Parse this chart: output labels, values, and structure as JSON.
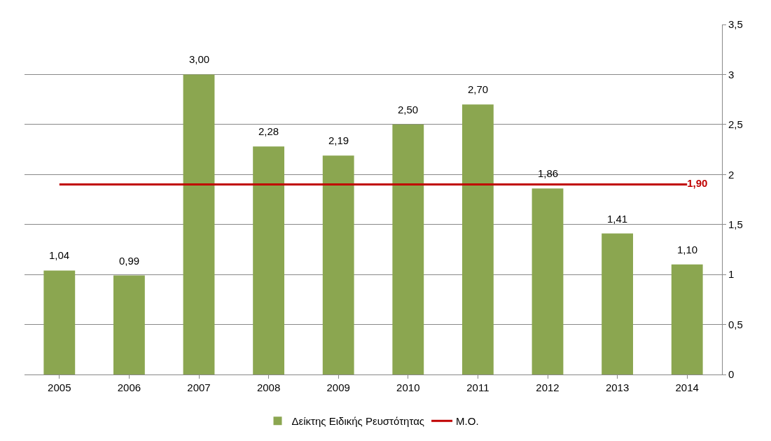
{
  "chart_data": {
    "type": "bar",
    "categories": [
      "2005",
      "2006",
      "2007",
      "2008",
      "2009",
      "2010",
      "2011",
      "2012",
      "2013",
      "2014"
    ],
    "series": [
      {
        "name": "Δείκτης Ειδικής Ρευστότητας",
        "color": "#8ba650",
        "values": [
          1.04,
          0.99,
          3.0,
          2.28,
          2.19,
          2.5,
          2.7,
          1.86,
          1.41,
          1.1
        ],
        "value_labels": [
          "1,04",
          "0,99",
          "3,00",
          "2,28",
          "2,19",
          "2,50",
          "2,70",
          "1,86",
          "1,41",
          "1,10"
        ]
      },
      {
        "name": "Μ.Ο.",
        "type": "line",
        "color": "#c00000",
        "values": [
          1.9,
          1.9,
          1.9,
          1.9,
          1.9,
          1.9,
          1.9,
          1.9,
          1.9,
          1.9
        ],
        "value_labels": [
          null,
          null,
          null,
          null,
          null,
          null,
          null,
          null,
          null,
          "1,90"
        ]
      }
    ],
    "ylim": [
      0,
      3.5
    ],
    "yticks": [
      0,
      {
        "value": 0.5,
        "label": "0,5"
      },
      1,
      {
        "value": 1.5,
        "label": "1,5"
      },
      2,
      {
        "value": 2.5,
        "label": "2,5"
      },
      3,
      {
        "value": 3.5,
        "label": "3,5"
      }
    ],
    "grid": "y",
    "legend": "bottom",
    "marker": "none"
  }
}
